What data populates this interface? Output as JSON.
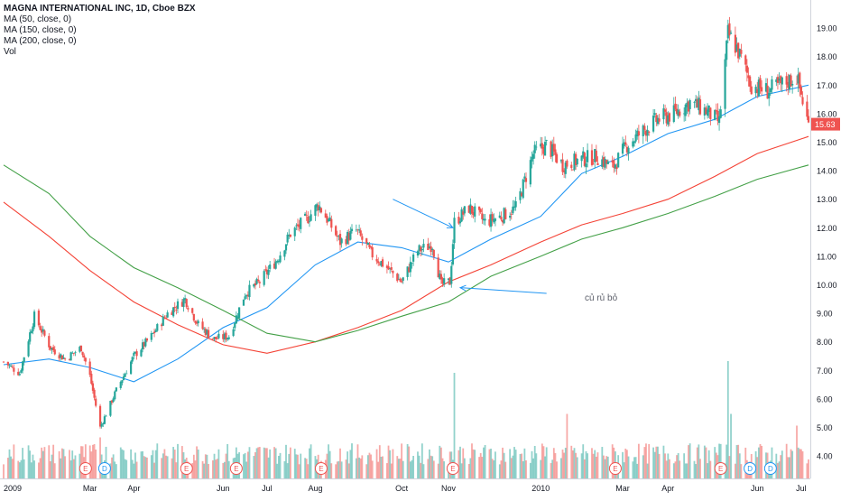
{
  "header": {
    "title": "MAGNA INTERNATIONAL INC, 1D, Cboe BZX",
    "indicators": [
      "MA (50, close, 0)",
      "MA (150, close, 0)",
      "MA (200, close, 0)",
      "Vol"
    ]
  },
  "annotation": {
    "text": "củ rủ bỏ"
  },
  "colors": {
    "up": "#26a69a",
    "down": "#ef5350",
    "ma50": "#2196f3",
    "ma150": "#f44336",
    "ma200": "#43a047",
    "price_badge": "#ef5350",
    "event_earnings": "#ef5350",
    "event_dividend": "#2196f3"
  },
  "chart_data": {
    "type": "candlestick",
    "y_axis": {
      "ticks": [
        "4.00",
        "5.00",
        "6.00",
        "7.00",
        "8.00",
        "9.00",
        "10.00",
        "11.00",
        "12.00",
        "13.00",
        "14.00",
        "15.00",
        "16.00",
        "17.00",
        "18.00",
        "19.00"
      ],
      "range": [
        3.4,
        19.5
      ]
    },
    "x_axis": {
      "ticks": [
        "2009",
        "Mar",
        "Apr",
        "Jun",
        "Jul",
        "Aug",
        "Oct",
        "Nov",
        "2010",
        "Mar",
        "Apr",
        "Jun",
        "Jul"
      ],
      "tick_dates": [
        "2009-01-02",
        "2009-03-02",
        "2009-04-01",
        "2009-06-01",
        "2009-07-01",
        "2009-08-03",
        "2009-10-01",
        "2009-11-02",
        "2010-01-04",
        "2010-03-01",
        "2010-04-01",
        "2010-06-01",
        "2010-07-01"
      ],
      "range": [
        "2009-01-02",
        "2010-07-06"
      ]
    },
    "last_price": "15.63",
    "keypoints": [
      [
        "2009-01-02",
        7.3
      ],
      [
        "2009-01-13",
        6.9
      ],
      [
        "2009-01-23",
        8.9
      ],
      [
        "2009-02-03",
        7.8
      ],
      [
        "2009-02-13",
        7.4
      ],
      [
        "2009-02-24",
        7.8
      ],
      [
        "2009-03-02",
        6.8
      ],
      [
        "2009-03-09",
        5.0
      ],
      [
        "2009-03-20",
        6.3
      ],
      [
        "2009-04-01",
        7.5
      ],
      [
        "2009-04-13",
        8.2
      ],
      [
        "2009-04-24",
        9.0
      ],
      [
        "2009-05-06",
        9.5
      ],
      [
        "2009-05-15",
        8.6
      ],
      [
        "2009-05-26",
        8.1
      ],
      [
        "2009-06-05",
        8.2
      ],
      [
        "2009-06-16",
        9.7
      ],
      [
        "2009-06-26",
        10.1
      ],
      [
        "2009-07-08",
        10.9
      ],
      [
        "2009-07-17",
        11.8
      ],
      [
        "2009-07-28",
        12.3
      ],
      [
        "2009-08-05",
        12.8
      ],
      [
        "2009-08-10",
        12.4
      ],
      [
        "2009-08-20",
        11.5
      ],
      [
        "2009-08-31",
        11.9
      ],
      [
        "2009-09-10",
        11.1
      ],
      [
        "2009-09-21",
        10.6
      ],
      [
        "2009-10-01",
        10.1
      ],
      [
        "2009-10-12",
        11.2
      ],
      [
        "2009-10-22",
        11.4
      ],
      [
        "2009-10-28",
        10.0
      ],
      [
        "2009-11-03",
        10.1
      ],
      [
        "2009-11-06",
        12.2
      ],
      [
        "2009-11-16",
        12.7
      ],
      [
        "2009-11-27",
        12.2
      ],
      [
        "2009-12-08",
        12.4
      ],
      [
        "2009-12-18",
        12.7
      ],
      [
        "2009-12-30",
        14.6
      ],
      [
        "2010-01-08",
        14.9
      ],
      [
        "2010-01-19",
        14.2
      ],
      [
        "2010-02-01",
        14.4
      ],
      [
        "2010-02-11",
        14.5
      ],
      [
        "2010-02-22",
        14.1
      ],
      [
        "2010-03-04",
        14.9
      ],
      [
        "2010-03-15",
        15.4
      ],
      [
        "2010-03-25",
        15.8
      ],
      [
        "2010-04-05",
        16.0
      ],
      [
        "2010-04-16",
        16.4
      ],
      [
        "2010-04-27",
        16.1
      ],
      [
        "2010-05-06",
        15.7
      ],
      [
        "2010-05-12",
        18.8
      ],
      [
        "2010-05-18",
        18.3
      ],
      [
        "2010-05-28",
        17.0
      ],
      [
        "2010-06-08",
        16.8
      ],
      [
        "2010-06-17",
        17.0
      ],
      [
        "2010-06-28",
        17.3
      ],
      [
        "2010-07-06",
        15.6
      ]
    ],
    "series": [
      {
        "name": "MA (50, close, 0)",
        "points": [
          [
            "2009-01-02",
            7.2
          ],
          [
            "2009-02-02",
            7.4
          ],
          [
            "2009-03-02",
            7.1
          ],
          [
            "2009-04-01",
            6.6
          ],
          [
            "2009-05-01",
            7.4
          ],
          [
            "2009-06-01",
            8.5
          ],
          [
            "2009-07-01",
            9.2
          ],
          [
            "2009-08-03",
            10.7
          ],
          [
            "2009-09-01",
            11.5
          ],
          [
            "2009-10-01",
            11.3
          ],
          [
            "2009-11-02",
            10.8
          ],
          [
            "2009-12-01",
            11.6
          ],
          [
            "2010-01-04",
            12.4
          ],
          [
            "2010-02-01",
            13.9
          ],
          [
            "2010-03-01",
            14.5
          ],
          [
            "2010-04-01",
            15.3
          ],
          [
            "2010-05-03",
            15.8
          ],
          [
            "2010-06-01",
            16.6
          ],
          [
            "2010-07-06",
            17.0
          ]
        ]
      },
      {
        "name": "MA (150, close, 0)",
        "points": [
          [
            "2009-01-02",
            12.9
          ],
          [
            "2009-02-02",
            11.7
          ],
          [
            "2009-03-02",
            10.5
          ],
          [
            "2009-04-01",
            9.4
          ],
          [
            "2009-05-01",
            8.6
          ],
          [
            "2009-06-01",
            7.9
          ],
          [
            "2009-07-01",
            7.6
          ],
          [
            "2009-08-03",
            8.0
          ],
          [
            "2009-09-01",
            8.5
          ],
          [
            "2009-10-01",
            9.1
          ],
          [
            "2009-11-02",
            10.1
          ],
          [
            "2009-12-01",
            10.7
          ],
          [
            "2010-01-04",
            11.5
          ],
          [
            "2010-02-01",
            12.1
          ],
          [
            "2010-03-01",
            12.5
          ],
          [
            "2010-04-01",
            13.0
          ],
          [
            "2010-05-03",
            13.8
          ],
          [
            "2010-06-01",
            14.6
          ],
          [
            "2010-07-06",
            15.2
          ]
        ]
      },
      {
        "name": "MA (200, close, 0)",
        "points": [
          [
            "2009-01-02",
            14.2
          ],
          [
            "2009-02-02",
            13.2
          ],
          [
            "2009-03-02",
            11.7
          ],
          [
            "2009-04-01",
            10.6
          ],
          [
            "2009-05-01",
            9.9
          ],
          [
            "2009-06-01",
            9.1
          ],
          [
            "2009-07-01",
            8.3
          ],
          [
            "2009-08-03",
            8.0
          ],
          [
            "2009-09-01",
            8.4
          ],
          [
            "2009-10-01",
            8.9
          ],
          [
            "2009-11-02",
            9.4
          ],
          [
            "2009-12-01",
            10.3
          ],
          [
            "2010-01-04",
            11.0
          ],
          [
            "2010-02-01",
            11.6
          ],
          [
            "2010-03-01",
            12.0
          ],
          [
            "2010-04-01",
            12.5
          ],
          [
            "2010-05-03",
            13.1
          ],
          [
            "2010-06-01",
            13.7
          ],
          [
            "2010-07-06",
            14.2
          ]
        ]
      }
    ],
    "volume_spikes": [
      [
        "2009-03-09",
        0.35
      ],
      [
        "2009-11-06",
        0.9
      ],
      [
        "2010-01-22",
        0.55
      ],
      [
        "2010-05-12",
        1.0
      ],
      [
        "2010-05-14",
        0.55
      ],
      [
        "2010-06-28",
        0.45
      ]
    ],
    "events": [
      {
        "date": "2009-02-27",
        "type": "earnings",
        "label": "E"
      },
      {
        "date": "2009-03-12",
        "type": "dividend",
        "label": "D"
      },
      {
        "date": "2009-05-07",
        "type": "earnings",
        "label": "E"
      },
      {
        "date": "2009-06-10",
        "type": "earnings",
        "label": "E"
      },
      {
        "date": "2009-08-07",
        "type": "earnings",
        "label": "E"
      },
      {
        "date": "2009-11-05",
        "type": "earnings",
        "label": "E"
      },
      {
        "date": "2010-02-24",
        "type": "earnings",
        "label": "E"
      },
      {
        "date": "2010-05-07",
        "type": "earnings",
        "label": "E"
      },
      {
        "date": "2010-05-27",
        "type": "dividend",
        "label": "D"
      },
      {
        "date": "2010-06-10",
        "type": "dividend",
        "label": "D"
      }
    ],
    "arrows": [
      {
        "from": [
          "2009-09-25",
          13.0
        ],
        "to": [
          "2009-11-05",
          12.0
        ]
      },
      {
        "from": [
          "2010-01-08",
          9.7
        ],
        "to": [
          "2009-11-10",
          9.9
        ]
      }
    ]
  }
}
